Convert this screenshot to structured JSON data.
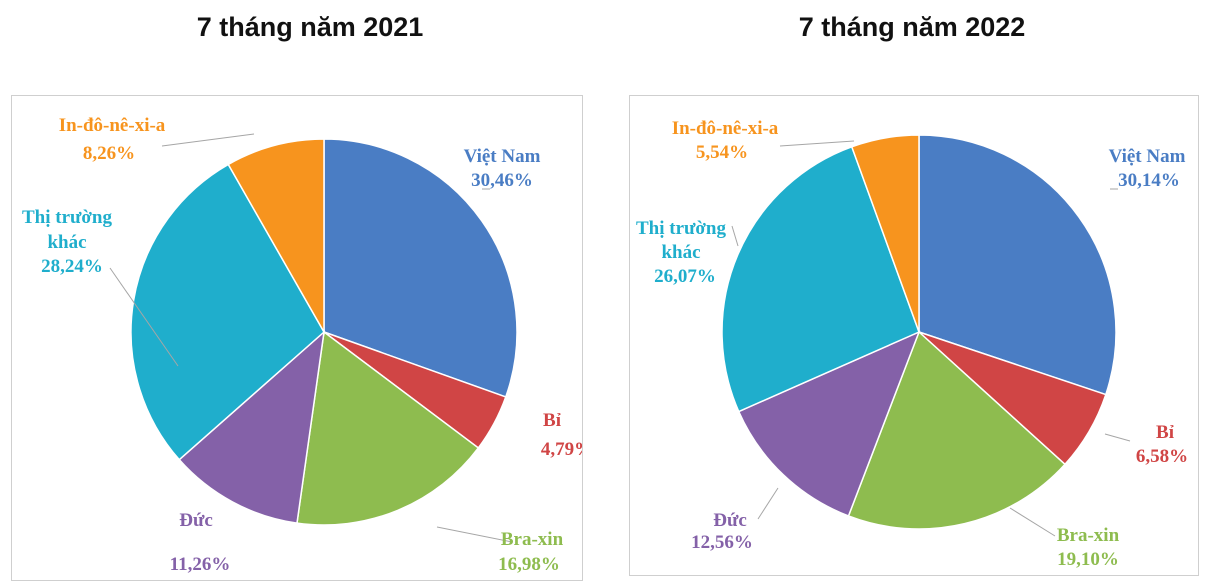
{
  "chart_data": [
    {
      "type": "pie",
      "title": "7 tháng năm 2021",
      "slices": [
        {
          "label": "Việt Nam",
          "value": 30.46,
          "value_label": "30,46%",
          "color": "#4A7DC4"
        },
        {
          "label": "Bỉ",
          "value": 4.79,
          "value_label": "4,79%",
          "color": "#D04545"
        },
        {
          "label": "Bra-xin",
          "value": 16.98,
          "value_label": "16,98%",
          "color": "#8EBC4F"
        },
        {
          "label": "Đức",
          "value": 11.26,
          "value_label": "11,26%",
          "color": "#8461A8"
        },
        {
          "label": "Thị trường khác",
          "value": 28.24,
          "value_label": "28,24%",
          "color": "#1FAECC"
        },
        {
          "label": "In-đô-nê-xi-a",
          "value": 8.26,
          "value_label": "8,26%",
          "color": "#F7941E"
        }
      ]
    },
    {
      "type": "pie",
      "title": "7 tháng năm 2022",
      "slices": [
        {
          "label": "Việt Nam",
          "value": 30.14,
          "value_label": "30,14%",
          "color": "#4A7DC4"
        },
        {
          "label": "Bỉ",
          "value": 6.58,
          "value_label": "6,58%",
          "color": "#D04545"
        },
        {
          "label": "Bra-xin",
          "value": 19.1,
          "value_label": "19,10%",
          "color": "#8EBC4F"
        },
        {
          "label": "Đức",
          "value": 12.56,
          "value_label": "12,56%",
          "color": "#8461A8"
        },
        {
          "label": "Thị trường khác",
          "value": 26.07,
          "value_label": "26,07%",
          "color": "#1FAECC"
        },
        {
          "label": "In-đô-nê-xi-a",
          "value": 5.54,
          "value_label": "5,54%",
          "color": "#F7941E"
        }
      ]
    }
  ]
}
